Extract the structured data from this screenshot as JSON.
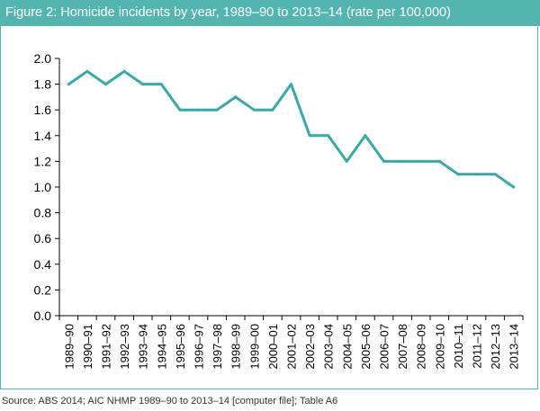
{
  "figure": {
    "title": "Figure 2: Homicide incidents by year, 1989–90 to 2013–14 (rate per 100,000)",
    "source": "Source: ABS 2014; AIC NHMP 1989–90 to 2013–14 [computer file]; Table A6"
  },
  "colors": {
    "accent": "#54b4b0",
    "line": "#3aa8a4",
    "axis": "#000000"
  },
  "chart_data": {
    "type": "line",
    "title": "Figure 2: Homicide incidents by year, 1989–90 to 2013–14 (rate per 100,000)",
    "xlabel": "",
    "ylabel": "",
    "ylim": [
      0,
      2.0
    ],
    "yticks": [
      "0.0",
      "0.2",
      "0.4",
      "0.6",
      "0.8",
      "1.0",
      "1.2",
      "1.4",
      "1.6",
      "1.8",
      "2.0"
    ],
    "grid": false,
    "legend": "none",
    "categories": [
      "1989–90",
      "1990–91",
      "1991–92",
      "1992–93",
      "1993–94",
      "1994–95",
      "1995–96",
      "1996–97",
      "1997–98",
      "1998–99",
      "1999–00",
      "2000–01",
      "2001–02",
      "2002–03",
      "2003–04",
      "2004–05",
      "2005–06",
      "2006–07",
      "2007–08",
      "2008–09",
      "2009–10",
      "2010–11",
      "2011–12",
      "2012–13",
      "2013–14"
    ],
    "values": [
      1.8,
      1.9,
      1.8,
      1.9,
      1.8,
      1.8,
      1.6,
      1.6,
      1.6,
      1.7,
      1.6,
      1.6,
      1.8,
      1.4,
      1.4,
      1.2,
      1.4,
      1.2,
      1.2,
      1.2,
      1.2,
      1.1,
      1.1,
      1.1,
      1.0
    ]
  }
}
